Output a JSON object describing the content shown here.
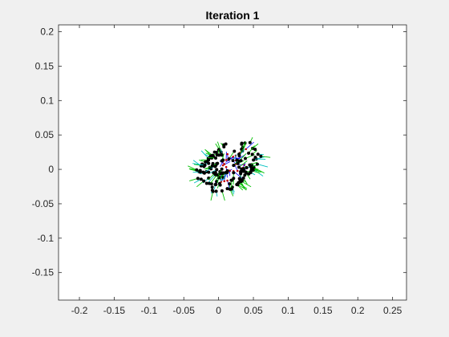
{
  "window": {
    "background": "#f0f0f0"
  },
  "chart_data": {
    "type": "scatter",
    "title": "Iteration 1",
    "xlabel": "",
    "ylabel": "",
    "xlim": [
      -0.23,
      0.27
    ],
    "ylim": [
      -0.19,
      0.21
    ],
    "xticks": [
      -0.2,
      -0.15,
      -0.1,
      -0.05,
      0,
      0.05,
      0.1,
      0.15,
      0.2,
      0.25
    ],
    "yticks": [
      -0.15,
      -0.1,
      -0.05,
      0,
      0.05,
      0.1,
      0.15,
      0.2
    ],
    "xtick_labels": [
      "-0.2",
      "-0.15",
      "-0.1",
      "-0.05",
      "0",
      "0.05",
      "0.1",
      "0.15",
      "0.2",
      "0.25"
    ],
    "ytick_labels": [
      "-0.15",
      "-0.1",
      "-0.05",
      "0",
      "0.05",
      "0.1",
      "0.15",
      "0.2"
    ],
    "grid": false,
    "legend": "none",
    "colors": {
      "axes_background": "#ffffff",
      "figure_background": "#f0f0f0",
      "points": "#000000",
      "normals_primary": "#00c000",
      "normals_secondary": "#00c0c0",
      "inner_lines": "#0000ff",
      "inner_markers": "#c00000"
    },
    "point_cloud": {
      "shape": "hollow cylinder viewed obliquely",
      "near_end_center": [
        0.0,
        -0.01
      ],
      "far_end_center": [
        0.03,
        0.02
      ],
      "radius_x": 0.035,
      "radius_y": 0.025,
      "approx_points": 160
    }
  }
}
